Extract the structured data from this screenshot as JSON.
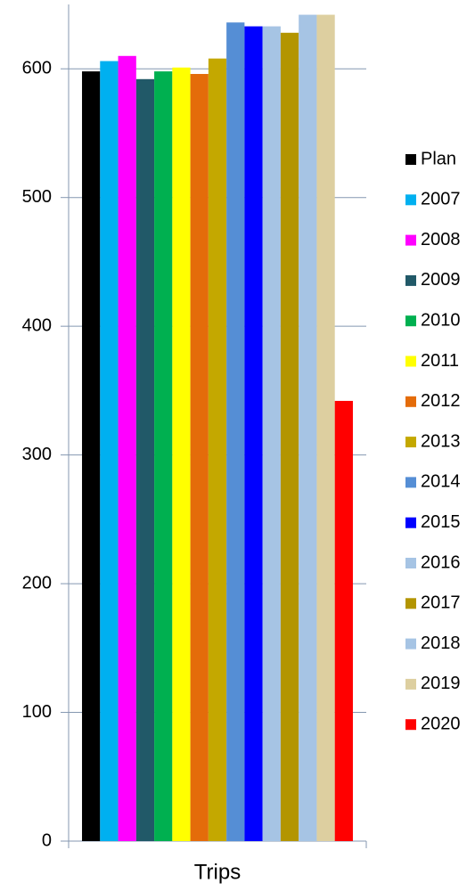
{
  "chart_data": {
    "type": "bar",
    "categories": [
      "Trips"
    ],
    "series": [
      {
        "name": "Plan",
        "color": "#000000",
        "values": [
          598
        ]
      },
      {
        "name": "2007",
        "color": "#00b0f0",
        "values": [
          606
        ]
      },
      {
        "name": "2008",
        "color": "#ff00ff",
        "values": [
          610
        ]
      },
      {
        "name": "2009",
        "color": "#215968",
        "values": [
          592
        ]
      },
      {
        "name": "2010",
        "color": "#00b050",
        "values": [
          598
        ]
      },
      {
        "name": "2011",
        "color": "#ffff00",
        "values": [
          601
        ]
      },
      {
        "name": "2012",
        "color": "#e46c0a",
        "values": [
          596
        ]
      },
      {
        "name": "2013",
        "color": "#c4a800",
        "values": [
          608
        ]
      },
      {
        "name": "2014",
        "color": "#558ed5",
        "values": [
          636
        ]
      },
      {
        "name": "2015",
        "color": "#0000ff",
        "values": [
          633
        ]
      },
      {
        "name": "2016",
        "color": "#a6c4e4",
        "values": [
          633
        ]
      },
      {
        "name": "2017",
        "color": "#b39500",
        "values": [
          628
        ]
      },
      {
        "name": "2018",
        "color": "#a6c4e4",
        "values": [
          642
        ]
      },
      {
        "name": "2019",
        "color": "#ddcfa0",
        "values": [
          642
        ]
      },
      {
        "name": "2020",
        "color": "#ff0000",
        "values": [
          342
        ]
      }
    ],
    "ylim": [
      0,
      650
    ],
    "yticks": [
      0,
      100,
      200,
      300,
      400,
      500,
      600
    ],
    "grid": true,
    "legend": "right"
  }
}
